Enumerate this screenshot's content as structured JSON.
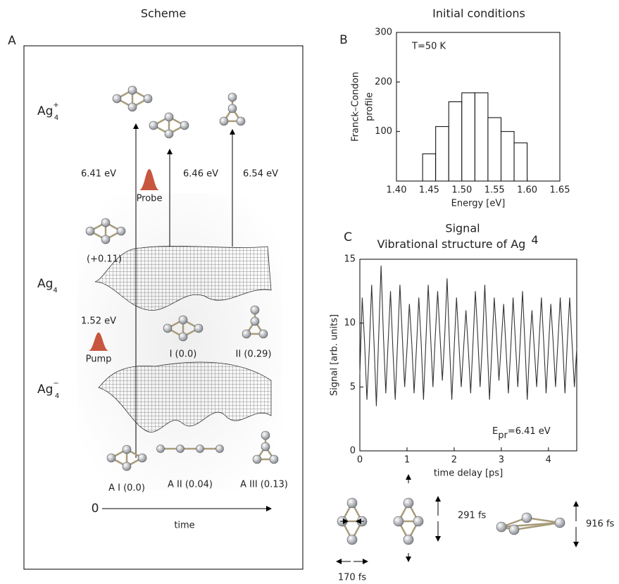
{
  "panel_a": {
    "title": "Scheme",
    "label": "A",
    "levels": [
      {
        "label": "Ag",
        "sub": "4",
        "sup": "+"
      },
      {
        "label": "Ag",
        "sub": "4"
      },
      {
        "label": "Ag",
        "sub": "4",
        "sup": "−"
      }
    ],
    "probe_energies": [
      "6.41 eV",
      "6.46 eV",
      "6.54 eV"
    ],
    "probe": "Probe",
    "pump": "Pump",
    "pump_energy": "1.52 eV",
    "offset": "(+0.11)",
    "neutral_isomers": [
      "I (0.0)",
      "II (0.29)"
    ],
    "anion_isomers": [
      "A I (0.0)",
      "A II (0.04)",
      "A III (0.13)"
    ],
    "time_origin": "0",
    "time_label": "time"
  },
  "panel_b": {
    "label": "B",
    "title": "Initial conditions"
  },
  "panel_c": {
    "label": "C",
    "title": "Signal",
    "subtitle": "Vibrational structure of Ag",
    "subtitle_sup": "4"
  },
  "modes": [
    "291 fs",
    "916 fs",
    "170 fs"
  ],
  "chart_data": [
    {
      "type": "histogram",
      "ylabel": [
        "Franck–Condon",
        "profile"
      ],
      "xlabel": "Energy [eV]",
      "annotation": "T=50 K",
      "bins": [
        1.44,
        1.46,
        1.48,
        1.5,
        1.52,
        1.54,
        1.56,
        1.58,
        1.6
      ],
      "values": [
        55,
        110,
        160,
        178,
        178,
        128,
        100,
        77
      ],
      "xlim": [
        1.4,
        1.65
      ],
      "ylim": [
        0,
        300
      ],
      "xticks": [
        {
          "value": 1.4,
          "label": "1.40"
        },
        {
          "value": 1.45,
          "label": "1.45"
        },
        {
          "value": 1.5,
          "label": "1.50"
        },
        {
          "value": 1.55,
          "label": "1.55"
        },
        {
          "value": 1.6,
          "label": "1.60"
        },
        {
          "value": 1.65,
          "label": "1.65"
        }
      ],
      "yticks": [
        100,
        200,
        300
      ],
      "color": "#000000"
    },
    {
      "type": "line",
      "ylabel": "Signal [arb. units]",
      "xlabel": "time delay [ps]",
      "annotation": {
        "text": "E",
        "sub": "pr",
        "after": "=6.41 eV"
      },
      "x": [
        0,
        0.05,
        0.1,
        0.15,
        0.2,
        0.25,
        0.3,
        0.35,
        0.4,
        0.45,
        0.5,
        0.55,
        0.6,
        0.65,
        0.7,
        0.75,
        0.8,
        0.85,
        0.9,
        0.95,
        1,
        1.05,
        1.1,
        1.15,
        1.2,
        1.25,
        1.3,
        1.35,
        1.4,
        1.45,
        1.5,
        1.55,
        1.6,
        1.65,
        1.7,
        1.75,
        1.8,
        1.85,
        1.9,
        1.95,
        2,
        2.05,
        2.1,
        2.15,
        2.2,
        2.25,
        2.3,
        2.35,
        2.4,
        2.45,
        2.5,
        2.55,
        2.6,
        2.65,
        2.7,
        2.75,
        2.8,
        2.85,
        2.9,
        2.95,
        3,
        3.05,
        3.1,
        3.15,
        3.2,
        3.25,
        3.3,
        3.35,
        3.4,
        3.45,
        3.5,
        3.55,
        3.6,
        3.65,
        3.7,
        3.75,
        3.8,
        3.85,
        3.9,
        3.95,
        4,
        4.05,
        4.1,
        4.15,
        4.2,
        4.25,
        4.3,
        4.35,
        4.4,
        4.45,
        4.5,
        4.55,
        4.6
      ],
      "values": [
        6,
        12,
        8.5,
        4,
        8,
        13,
        8.5,
        3.5,
        9,
        14.5,
        9,
        4.5,
        8.5,
        12.5,
        8,
        4,
        8.5,
        13,
        9,
        5,
        8,
        11.5,
        8.5,
        4.5,
        8,
        12,
        8.5,
        4,
        8.5,
        13,
        9,
        5,
        9,
        12.5,
        9,
        5.5,
        9,
        13.5,
        8.5,
        4,
        8,
        12,
        8.5,
        5,
        8,
        11,
        8,
        4.5,
        8.5,
        12.5,
        9,
        5,
        8.5,
        13,
        8.5,
        4,
        8,
        12,
        9,
        5.5,
        8.5,
        11.5,
        8,
        4.5,
        8,
        12,
        8.5,
        5,
        8.5,
        12.5,
        8.5,
        4,
        8,
        11,
        8,
        5,
        8.5,
        12,
        8.5,
        4.5,
        8,
        11.5,
        8.5,
        5,
        8.5,
        12,
        8.5,
        4.5,
        8.5,
        12,
        8.5,
        5,
        8
      ],
      "xlim": [
        0,
        4.6
      ],
      "ylim": [
        0,
        15
      ],
      "xticks": [
        0,
        1,
        2,
        3,
        4
      ],
      "yticks": [
        0,
        5,
        10,
        15
      ],
      "color": "#333333"
    }
  ]
}
